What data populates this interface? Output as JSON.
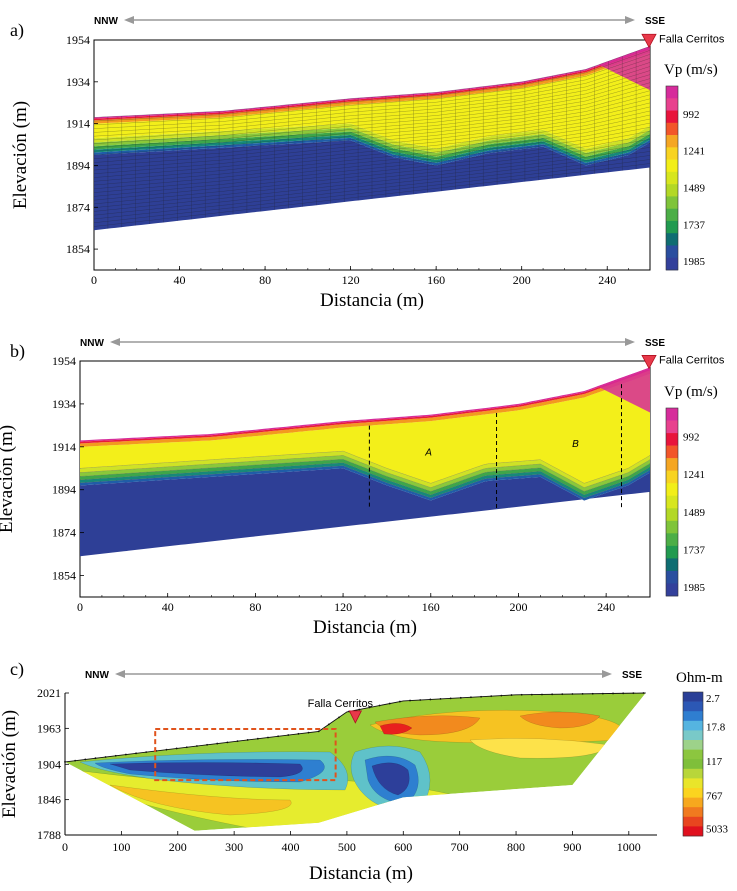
{
  "figure": {
    "direction": {
      "left": "NNW",
      "right": "SSE"
    },
    "fault_label": "Falla Cerritos"
  },
  "chart_data": [
    {
      "panel": "a)",
      "type": "heatmap",
      "title": "",
      "xlabel": "Distancia (m)",
      "ylabel": "Elevación (m)",
      "xlim": [
        0,
        260
      ],
      "ylim": [
        1844,
        1954
      ],
      "xticks": [
        "0",
        "40",
        "80",
        "120",
        "160",
        "200",
        "240"
      ],
      "yticks": [
        "1954",
        "1934",
        "1914",
        "1894",
        "1874",
        "1854"
      ],
      "colorbar": {
        "title": "Vp (m/s)",
        "ticks": [
          "992",
          "1241",
          "1489",
          "1737",
          "1985"
        ]
      },
      "surface_elev": [
        [
          0,
          1917
        ],
        [
          60,
          1920
        ],
        [
          120,
          1926
        ],
        [
          160,
          1929
        ],
        [
          200,
          1934
        ],
        [
          230,
          1940
        ],
        [
          260,
          1951
        ]
      ],
      "base_elev": [
        [
          0,
          1863
        ],
        [
          260,
          1893
        ]
      ],
      "blue_top_elev": [
        [
          0,
          1899
        ],
        [
          120,
          1906
        ],
        [
          140,
          1898
        ],
        [
          160,
          1894
        ],
        [
          185,
          1900
        ],
        [
          210,
          1903
        ],
        [
          230,
          1894
        ],
        [
          250,
          1899
        ],
        [
          260,
          1905
        ]
      ],
      "annotations": []
    },
    {
      "panel": "b)",
      "type": "heatmap",
      "title": "",
      "xlabel": "Distancia (m)",
      "ylabel": "Elevación (m)",
      "xlim": [
        0,
        260
      ],
      "ylim": [
        1844,
        1954
      ],
      "xticks": [
        "0",
        "40",
        "80",
        "120",
        "160",
        "200",
        "240"
      ],
      "yticks": [
        "1954",
        "1934",
        "1914",
        "1894",
        "1874",
        "1854"
      ],
      "colorbar": {
        "title": "Vp (m/s)",
        "ticks": [
          "992",
          "1241",
          "1489",
          "1737",
          "1985"
        ]
      },
      "surface_elev": [
        [
          0,
          1917
        ],
        [
          60,
          1920
        ],
        [
          120,
          1926
        ],
        [
          160,
          1929
        ],
        [
          200,
          1934
        ],
        [
          230,
          1940
        ],
        [
          260,
          1951
        ]
      ],
      "base_elev": [
        [
          0,
          1863
        ],
        [
          260,
          1893
        ]
      ],
      "blue_top_elev": [
        [
          0,
          1896
        ],
        [
          120,
          1904
        ],
        [
          140,
          1896
        ],
        [
          160,
          1889
        ],
        [
          185,
          1898
        ],
        [
          210,
          1900
        ],
        [
          230,
          1889
        ],
        [
          250,
          1896
        ],
        [
          260,
          1902
        ]
      ],
      "annotations": [
        "A",
        "B"
      ],
      "dashed_lines_x": [
        132,
        190,
        247
      ]
    },
    {
      "panel": "c)",
      "type": "heatmap",
      "title": "",
      "xlabel": "Distancia (m)",
      "ylabel": "Elevación (m)",
      "xlim": [
        0,
        1050
      ],
      "ylim": [
        1788,
        2021
      ],
      "xticks": [
        "0",
        "100",
        "200",
        "300",
        "400",
        "500",
        "600",
        "700",
        "800",
        "900",
        "1000"
      ],
      "yticks": [
        "2021",
        "1963",
        "1904",
        "1846",
        "1788"
      ],
      "colorbar": {
        "title": "Ohm-m",
        "ticks": [
          "2.7",
          "17.8",
          "117",
          "767",
          "5033"
        ]
      },
      "fault_x": 515,
      "annotations": []
    }
  ]
}
